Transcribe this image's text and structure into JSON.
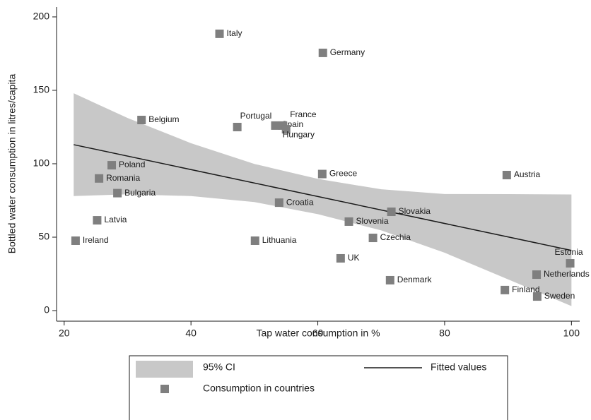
{
  "chart_data": {
    "type": "scatter",
    "x_label": "Tap water consumption in %",
    "y_label": "Bottled water consumption in litres/capita",
    "xlim": [
      18.8,
      101.3
    ],
    "ylim": [
      -7.2,
      206.7
    ],
    "xticks": [
      20,
      40,
      60,
      80,
      100
    ],
    "yticks": [
      0,
      50,
      100,
      150,
      200
    ],
    "series": [
      {
        "name": "95% CI",
        "type": "area",
        "color": "#c8c8c8",
        "x": [
          21.5,
          30,
          40,
          50,
          60,
          70,
          80,
          90,
          100
        ],
        "lower": [
          78,
          79.2,
          78,
          73.9,
          65.7,
          54.6,
          39.4,
          21.3,
          3.1
        ],
        "upper": [
          148,
          131.2,
          114,
          99.9,
          89.7,
          82.6,
          79.4,
          79.3,
          79.1
        ]
      },
      {
        "name": "Fitted values",
        "type": "line",
        "color": "#1a1a1a",
        "x": [
          21.5,
          100
        ],
        "values": [
          113,
          41
        ]
      },
      {
        "name": "Consumption in countries",
        "type": "scatter",
        "color": "#7f7f7f",
        "labels": [
          "Italy",
          "Germany",
          "Belgium",
          "Portugal",
          "Spain",
          "France",
          "Hungary",
          "Poland",
          "Romania",
          "Bulgaria",
          "Latvia",
          "Ireland",
          "Greece",
          "Croatia",
          "Lithuania",
          "Slovenia",
          "Slovakia",
          "Czechia",
          "UK",
          "Denmark",
          "Austria",
          "Estonia",
          "Netherlands",
          "Finland",
          "Sweden"
        ],
        "x": [
          44.5,
          60.8,
          32.2,
          47.3,
          53.3,
          54.5,
          55.0,
          27.5,
          25.5,
          28.4,
          25.2,
          21.8,
          60.7,
          53.9,
          50.1,
          64.9,
          71.6,
          68.7,
          63.6,
          71.4,
          89.8,
          99.8,
          94.5,
          89.5,
          94.6
        ],
        "values": [
          188.5,
          175.5,
          129.8,
          125,
          126,
          126,
          123.5,
          99,
          90,
          80,
          61.5,
          47.6,
          93,
          73.5,
          47.6,
          60.6,
          67.3,
          49.5,
          35.6,
          20.7,
          92.3,
          32.2,
          24.5,
          14,
          9.6
        ]
      }
    ]
  }
}
